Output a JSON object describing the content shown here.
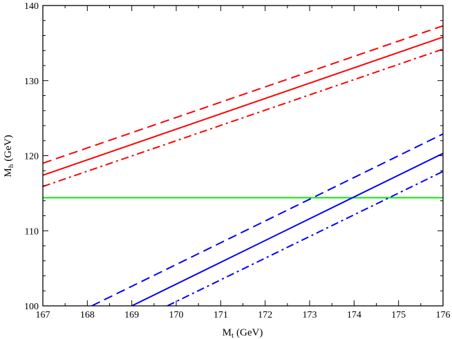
{
  "chart_data": {
    "type": "line",
    "title": "",
    "xlabel": {
      "main": "M",
      "sub": "t",
      "unit": "(GeV)"
    },
    "ylabel": {
      "main": "M",
      "sub": "h",
      "unit": "(GeV)"
    },
    "xlim": [
      167,
      176
    ],
    "ylim": [
      100,
      140
    ],
    "xticks": [
      167,
      168,
      169,
      170,
      171,
      172,
      173,
      174,
      175,
      176
    ],
    "yticks": [
      100,
      110,
      120,
      130,
      140
    ],
    "grid": false,
    "legend": "none",
    "series": [
      {
        "color": "#ff0000",
        "dash": "dashed",
        "x": [
          167,
          176
        ],
        "y": [
          119.0,
          137.3
        ]
      },
      {
        "color": "#ff0000",
        "dash": "solid",
        "x": [
          167,
          176
        ],
        "y": [
          117.4,
          135.8
        ]
      },
      {
        "color": "#ff0000",
        "dash": "dashdot",
        "x": [
          167,
          176
        ],
        "y": [
          115.9,
          134.2
        ]
      },
      {
        "color": "#00ee00",
        "dash": "solid",
        "x": [
          167,
          176
        ],
        "y": [
          114.4,
          114.4
        ]
      },
      {
        "color": "#0000ff",
        "dash": "dashed",
        "x": [
          168.1,
          176
        ],
        "y": [
          100.0,
          122.9
        ]
      },
      {
        "color": "#0000ff",
        "dash": "solid",
        "x": [
          169.0,
          176
        ],
        "y": [
          100.0,
          120.3
        ]
      },
      {
        "color": "#0000ff",
        "dash": "dashdot",
        "x": [
          169.8,
          176
        ],
        "y": [
          100.0,
          117.9
        ]
      }
    ]
  }
}
